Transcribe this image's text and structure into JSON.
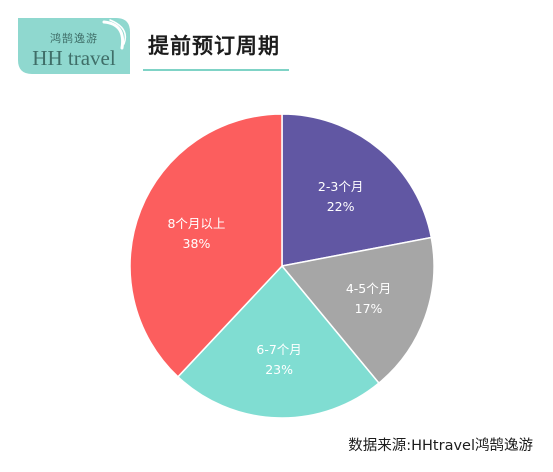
{
  "header": {
    "logo_script": "鸿鹄逸游",
    "logo_name": "HH travel",
    "title": "提前预订周期"
  },
  "footer": {
    "source": "数据来源:HHtravel鸿鹄逸游"
  },
  "colors": {
    "logo_bg": "#8fd8cf",
    "accent_line": "#7fd3c6"
  },
  "chart_data": {
    "type": "pie",
    "slices": [
      {
        "label": "2-3个月",
        "value": 22,
        "value_label": "22%",
        "color": "#6157a3"
      },
      {
        "label": "4-5个月",
        "value": 17,
        "value_label": "17%",
        "color": "#a6a6a6"
      },
      {
        "label": "6-7个月",
        "value": 23,
        "value_label": "23%",
        "color": "#80ddd2"
      },
      {
        "label": "8个月以上",
        "value": 38,
        "value_label": "38%",
        "color": "#fc5e5e"
      }
    ]
  }
}
